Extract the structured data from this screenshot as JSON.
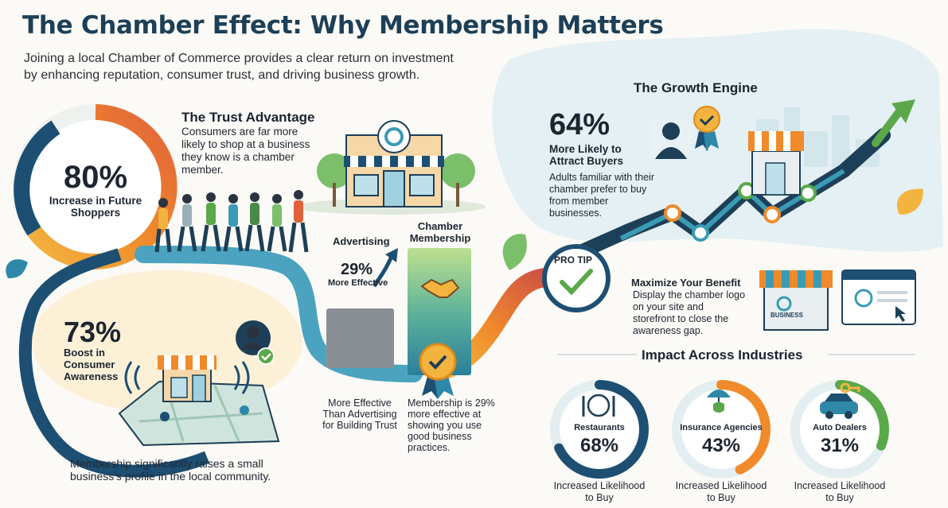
{
  "header": {
    "title": "The Chamber Effect: Why Membership Matters",
    "subtitle": "Joining a local Chamber of Commerce provides a clear return on investment by enhancing reputation, consumer trust, and driving business growth."
  },
  "trust": {
    "heading": "The Trust Advantage",
    "text": "Consumers are far more likely to shop at a business they know is a chamber member.",
    "stat_value": "80%",
    "stat_label": "Increase in Future Shoppers"
  },
  "awareness": {
    "stat_value": "73%",
    "stat_label": "Boost in Consumer Awareness",
    "caption": "Membership significantly raises a small business's profile in the local community."
  },
  "comparison": {
    "advertising_label": "Advertising",
    "membership_label": "Chamber Membership",
    "diff_value": "29%",
    "diff_label": "More Effective",
    "left_caption": "More Effective Than Advertising for Building Trust",
    "right_caption": "Membership is 29% more effective at showing you use good business practices."
  },
  "growth": {
    "heading": "The Growth Engine",
    "stat_value": "64%",
    "stat_label": "More Likely to Attract Buyers",
    "text": "Adults familiar with their chamber prefer to buy from member businesses."
  },
  "pro_tip": {
    "badge": "PRO TIP",
    "heading": "Maximize Your Benefit",
    "text": "Display the chamber logo on your site and storefront to close the awareness gap.",
    "store_sign": "BUSINESS"
  },
  "industries": {
    "heading": "Impact Across Industries",
    "items": [
      {
        "name": "Restaurants",
        "value": "68%",
        "fraction": 0.68,
        "caption": "Increased Likelihood to Buy",
        "icon": "plate-cutlery-icon",
        "color": "#1d4f73"
      },
      {
        "name": "Insurance Agencies",
        "value": "43%",
        "fraction": 0.43,
        "caption": "Increased Likelihood to Buy",
        "icon": "umbrella-shield-icon",
        "color": "#f08a2b"
      },
      {
        "name": "Auto Dealers",
        "value": "31%",
        "fraction": 0.31,
        "caption": "Increased Likelihood to Buy",
        "icon": "car-key-icon",
        "color": "#5aa84a"
      }
    ]
  }
}
